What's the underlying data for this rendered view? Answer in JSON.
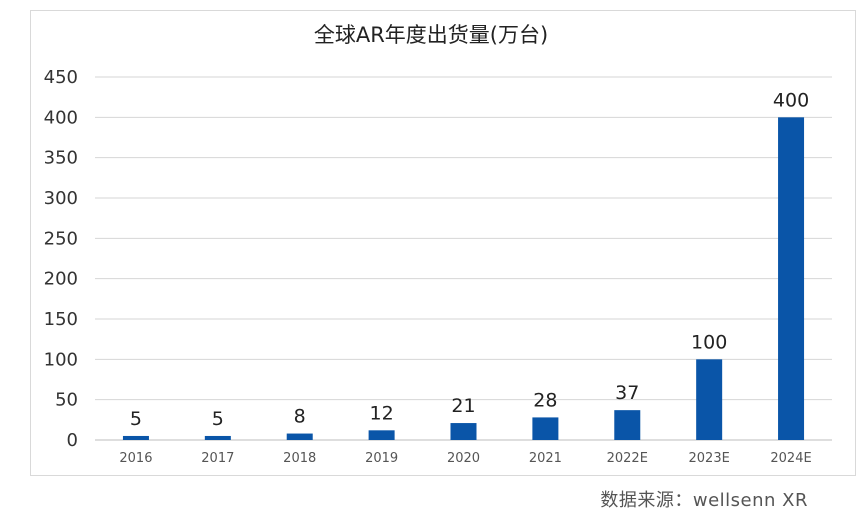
{
  "chart_data": {
    "type": "bar",
    "title": "全球AR年度出货量(万台)",
    "categories": [
      "2016",
      "2017",
      "2018",
      "2019",
      "2020",
      "2021",
      "2022E",
      "2023E",
      "2024E"
    ],
    "values": [
      5,
      5,
      8,
      12,
      21,
      28,
      37,
      100,
      400
    ],
    "data_labels": [
      "5",
      "5",
      "8",
      "12",
      "21",
      "28",
      "37",
      "100",
      "400"
    ],
    "ylim": [
      0,
      450
    ],
    "yticks": [
      "0",
      "50",
      "100",
      "150",
      "200",
      "250",
      "300",
      "350",
      "400",
      "450"
    ],
    "grid": true,
    "legend": "none",
    "bar_color": "#0a55a8"
  },
  "source": "数据来源：wellsenn XR"
}
